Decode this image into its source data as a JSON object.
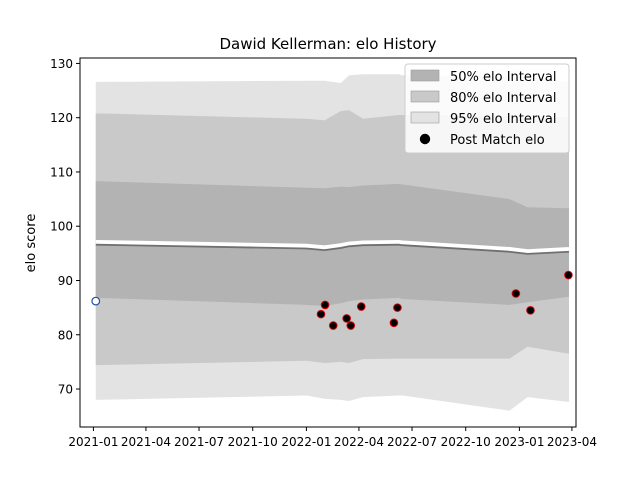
{
  "chart_data": {
    "type": "area",
    "title": "Dawid Kellerman: elo History",
    "xlabel": "",
    "ylabel": "elo score",
    "xlim": [
      "2020-12-09",
      "2023-04-08"
    ],
    "ylim": [
      63,
      131
    ],
    "x_ticks": [
      "2021-01",
      "2021-04",
      "2021-07",
      "2021-10",
      "2022-01",
      "2022-04",
      "2022-07",
      "2022-10",
      "2023-01",
      "2023-04"
    ],
    "y_ticks": [
      70,
      80,
      90,
      100,
      110,
      120,
      130
    ],
    "grid": false,
    "legend_position": "top-right",
    "colors": {
      "band_50": "#b3b3b3",
      "band_80": "#c9c9c9",
      "band_95": "#e3e3e3",
      "mean_line": "#707070",
      "mean_highlight": "#ffffff",
      "point_fill": "#000000",
      "point_edge": "#d40000",
      "initial_point_edge": "#1f4ea3"
    },
    "x": [
      "2021-01-05",
      "2022-01-01",
      "2022-02-01",
      "2022-03-01",
      "2022-03-15",
      "2022-04-08",
      "2022-06-08",
      "2022-06-15",
      "2022-12-15",
      "2023-01-15",
      "2023-03-27"
    ],
    "mean": [
      96.6,
      95.9,
      95.6,
      96.0,
      96.3,
      96.5,
      96.6,
      96.5,
      95.3,
      94.9,
      95.3
    ],
    "series": [
      {
        "name": "50% elo Interval",
        "lower": [
          86.8,
          85.5,
          85.3,
          85.8,
          86.2,
          86.5,
          86.8,
          86.6,
          85.5,
          86.0,
          87.0
        ],
        "upper": [
          108.3,
          107.1,
          107.0,
          107.3,
          107.2,
          107.5,
          107.8,
          107.7,
          105.0,
          103.5,
          103.3
        ]
      },
      {
        "name": "80% elo Interval",
        "lower": [
          74.4,
          75.2,
          74.8,
          75.0,
          74.8,
          75.5,
          75.6,
          75.6,
          75.6,
          77.8,
          76.5
        ],
        "upper": [
          120.8,
          119.8,
          119.5,
          121.2,
          121.4,
          119.8,
          120.5,
          120.5,
          120.3,
          120.0,
          120.1
        ]
      },
      {
        "name": "95% elo Interval",
        "lower": [
          68.0,
          68.8,
          68.2,
          68.0,
          67.8,
          68.5,
          68.8,
          68.8,
          66.0,
          68.5,
          67.6
        ],
        "upper": [
          126.6,
          126.8,
          126.8,
          126.4,
          127.8,
          128.0,
          128.0,
          127.8,
          127.5,
          127.5,
          126.6
        ]
      }
    ],
    "points": {
      "name": "Post Match elo",
      "x": [
        "2022-01-26",
        "2022-02-02",
        "2022-02-16",
        "2022-03-11",
        "2022-03-18",
        "2022-04-05",
        "2022-05-31",
        "2022-06-06",
        "2022-12-26",
        "2023-01-20",
        "2023-03-26"
      ],
      "y": [
        83.8,
        85.5,
        81.7,
        83.0,
        81.7,
        85.2,
        82.2,
        85.0,
        87.6,
        84.5,
        91.0
      ]
    },
    "initial_point": {
      "x": "2021-01-05",
      "y": 86.2
    }
  }
}
